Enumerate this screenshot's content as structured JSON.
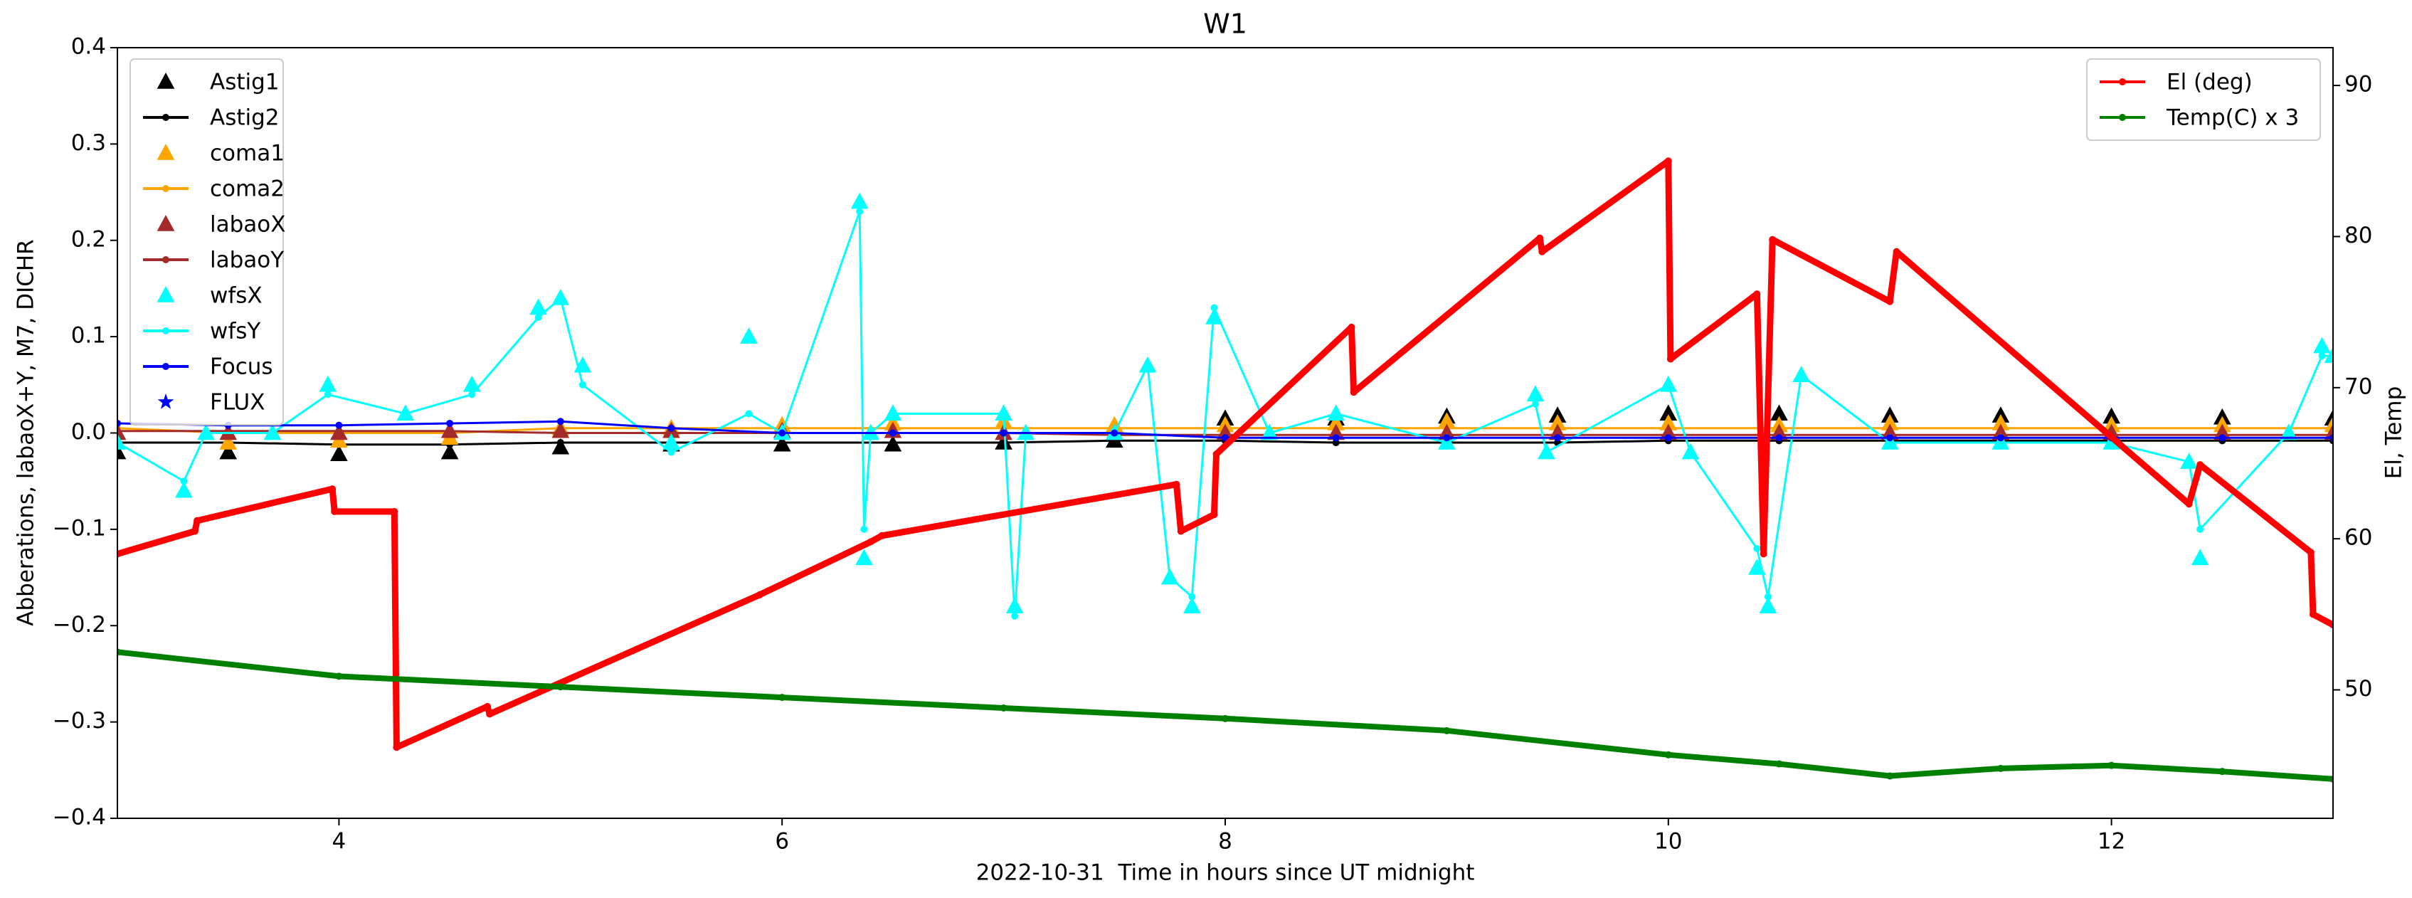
{
  "chart_data": {
    "type": "line",
    "title": "W1",
    "xlabel": "2022-10-31  Time in hours since UT midnight",
    "ylabel": "Abberations, labaoX+Y, M7, DICHR",
    "y2label": "El, Temp",
    "xlim": [
      3,
      13
    ],
    "xticks": [
      4,
      6,
      8,
      10,
      12
    ],
    "ylim": [
      -0.4,
      0.4
    ],
    "yticks": [
      {
        "value": -0.4,
        "label": "−0.4"
      },
      {
        "value": -0.3,
        "label": "−0.3"
      },
      {
        "value": -0.2,
        "label": "−0.2"
      },
      {
        "value": -0.1,
        "label": "−0.1"
      },
      {
        "value": 0,
        "label": "0.0"
      },
      0.1,
      0.2,
      0.3,
      0.4
    ],
    "y2lim": [
      41.5,
      92.5
    ],
    "y2ticks": [
      50,
      60,
      70,
      80,
      90
    ],
    "legend_loc": "upper left",
    "legend2_loc": "upper right",
    "x": [
      3,
      3.5,
      4,
      4.5,
      5,
      5.5,
      6,
      6.5,
      7,
      7.5,
      8,
      8.5,
      9,
      9.5,
      10,
      10.5,
      11,
      11.5,
      12,
      12.5,
      13
    ],
    "series": [
      {
        "name": "Astig1",
        "color": "#000000",
        "marker": "triangle",
        "line": false,
        "values": [
          -0.02,
          -0.02,
          -0.022,
          -0.02,
          -0.015,
          -0.012,
          -0.012,
          -0.012,
          -0.01,
          -0.008,
          0.015,
          0.015,
          0.017,
          0.018,
          0.02,
          0.02,
          0.018,
          0.018,
          0.017,
          0.016,
          0.015
        ]
      },
      {
        "name": "Astig2",
        "color": "#000000",
        "marker": "circle",
        "line": true,
        "values": [
          -0.01,
          -0.01,
          -0.012,
          -0.012,
          -0.01,
          -0.01,
          -0.01,
          -0.01,
          -0.01,
          -0.008,
          -0.008,
          -0.01,
          -0.01,
          -0.01,
          -0.008,
          -0.008,
          -0.008,
          -0.008,
          -0.008,
          -0.008,
          -0.008
        ]
      },
      {
        "name": "coma1",
        "color": "#ffa500",
        "marker": "triangle",
        "line": false,
        "values": [
          0.0,
          -0.01,
          -0.008,
          -0.005,
          0.005,
          0.005,
          0.008,
          0.01,
          0.012,
          0.008,
          0.008,
          0.01,
          0.012,
          0.01,
          0.01,
          0.008,
          0.01,
          0.01,
          0.008,
          0.008,
          0.008
        ]
      },
      {
        "name": "coma2",
        "color": "#ffa500",
        "marker": "circle",
        "line": true,
        "values": [
          0.005,
          0.0,
          0.0,
          0.0,
          0.005,
          0.005,
          0.005,
          0.005,
          0.005,
          0.005,
          0.005,
          0.005,
          0.005,
          0.005,
          0.005,
          0.005,
          0.005,
          0.005,
          0.005,
          0.005,
          0.005
        ]
      },
      {
        "name": "labaoX",
        "color": "#a52a2a",
        "marker": "triangle",
        "line": false,
        "values": [
          0.0,
          0.0,
          0.0,
          0.002,
          0.002,
          0.002,
          0.002,
          0.002,
          0.0,
          0.0,
          0.0,
          0.0,
          0.0,
          0.0,
          0.0,
          0.0,
          0.0,
          0.0,
          0.0,
          0.0,
          0.0
        ]
      },
      {
        "name": "labaoY",
        "color": "#a52a2a",
        "marker": "circle",
        "line": true,
        "values": [
          0.002,
          0.002,
          0.002,
          0.002,
          0.0,
          0.0,
          0.0,
          0.0,
          0.0,
          -0.002,
          -0.002,
          -0.002,
          -0.002,
          -0.002,
          -0.002,
          -0.002,
          -0.002,
          -0.002,
          -0.002,
          -0.002,
          -0.002
        ]
      },
      {
        "name": "wfsX",
        "color": "#00ffff",
        "marker": "triangle",
        "line": false,
        "x": [
          3.0,
          3.3,
          3.4,
          3.7,
          3.95,
          4.3,
          4.6,
          4.9,
          5.0,
          5.1,
          5.5,
          5.85,
          6.0,
          6.35,
          6.37,
          6.4,
          6.5,
          7.0,
          7.05,
          7.1,
          7.5,
          7.65,
          7.75,
          7.85,
          7.95,
          8.2,
          8.5,
          9.0,
          9.4,
          9.45,
          10.0,
          10.1,
          10.4,
          10.45,
          10.6,
          11.0,
          11.5,
          12.0,
          12.35,
          12.4,
          12.8,
          12.95,
          13.0
        ],
        "values": [
          -0.01,
          -0.06,
          0.0,
          0.0,
          0.05,
          0.02,
          0.05,
          0.13,
          0.14,
          0.07,
          -0.01,
          0.1,
          0.0,
          0.24,
          -0.13,
          0.0,
          0.02,
          0.02,
          -0.18,
          0.0,
          0.0,
          0.07,
          -0.15,
          -0.18,
          0.12,
          0.0,
          0.02,
          -0.01,
          0.04,
          -0.02,
          0.05,
          -0.02,
          -0.14,
          -0.18,
          0.06,
          -0.01,
          -0.01,
          -0.01,
          -0.03,
          -0.13,
          0.0,
          0.09,
          0.08
        ]
      },
      {
        "name": "wfsY",
        "color": "#00ffff",
        "marker": "circle",
        "line": true,
        "x": [
          3.0,
          3.3,
          3.4,
          3.7,
          3.95,
          4.3,
          4.6,
          4.9,
          5.0,
          5.1,
          5.5,
          5.85,
          6.0,
          6.35,
          6.37,
          6.4,
          6.5,
          7.0,
          7.05,
          7.1,
          7.5,
          7.65,
          7.75,
          7.85,
          7.95,
          8.2,
          8.5,
          9.0,
          9.4,
          9.45,
          10.0,
          10.1,
          10.4,
          10.45,
          10.6,
          11.0,
          11.5,
          12.0,
          12.35,
          12.4,
          12.8,
          12.95,
          13.0
        ],
        "values": [
          -0.01,
          -0.05,
          0.0,
          0.0,
          0.04,
          0.02,
          0.04,
          0.12,
          0.14,
          0.05,
          -0.02,
          0.02,
          0.0,
          0.23,
          -0.1,
          0.0,
          0.02,
          0.02,
          -0.19,
          0.0,
          0.0,
          0.07,
          -0.15,
          -0.17,
          0.13,
          0.0,
          0.02,
          -0.01,
          0.03,
          -0.02,
          0.05,
          -0.02,
          -0.12,
          -0.17,
          0.06,
          -0.01,
          -0.01,
          -0.01,
          -0.03,
          -0.1,
          0.0,
          0.08,
          0.08
        ]
      },
      {
        "name": "Focus",
        "color": "#0000ff",
        "marker": "circle",
        "line": true,
        "values": [
          0.01,
          0.008,
          0.008,
          0.01,
          0.012,
          0.005,
          0.0,
          0.0,
          0.0,
          0.0,
          -0.005,
          -0.005,
          -0.005,
          -0.005,
          -0.005,
          -0.005,
          -0.005,
          -0.005,
          -0.005,
          -0.005,
          -0.005
        ]
      },
      {
        "name": "FLUX",
        "color": "#0000ff",
        "marker": "star",
        "line": false,
        "x": [],
        "values": []
      },
      {
        "name": "El (deg)",
        "color": "#ff0000",
        "marker": "circle",
        "line": true,
        "axis": "y2",
        "x": [
          3.0,
          3.35,
          3.36,
          3.97,
          3.98,
          4.25,
          4.26,
          4.67,
          4.68,
          5.9,
          6.4,
          6.45,
          7.78,
          7.8,
          7.95,
          7.96,
          8.57,
          8.58,
          9.42,
          9.43,
          10.0,
          10.01,
          10.4,
          10.43,
          10.47,
          11.0,
          11.03,
          12.35,
          12.4,
          12.9,
          12.91,
          13.0
        ],
        "values": [
          59.0,
          60.5,
          61.2,
          63.3,
          61.8,
          61.8,
          46.2,
          48.9,
          48.4,
          56.3,
          59.8,
          60.2,
          63.6,
          60.5,
          61.6,
          65.6,
          74.0,
          69.7,
          79.9,
          79.0,
          85.0,
          71.9,
          76.2,
          59.0,
          79.8,
          75.7,
          79.0,
          62.3,
          64.9,
          59.1,
          55.0,
          54.3
        ]
      },
      {
        "name": "Temp(C) x 3",
        "color": "#008000",
        "marker": "circle",
        "line": true,
        "axis": "y2",
        "x": [
          3,
          4,
          5,
          6,
          7,
          8,
          9,
          10,
          10.5,
          11,
          11.5,
          12,
          12.5,
          13
        ],
        "values": [
          52.5,
          50.9,
          50.2,
          49.5,
          48.8,
          48.1,
          47.3,
          45.7,
          45.1,
          44.3,
          44.8,
          45.0,
          44.6,
          44.1
        ]
      }
    ]
  }
}
